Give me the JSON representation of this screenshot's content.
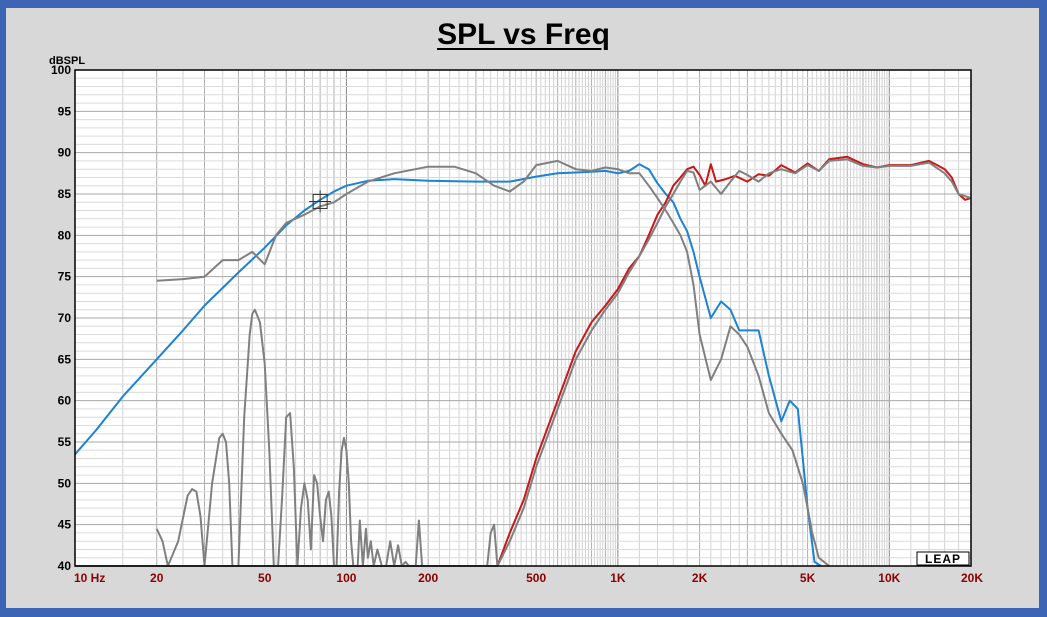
{
  "chart_data": {
    "type": "line",
    "title": "SPL vs Freq",
    "ylabel": "dBSPL",
    "xscale": "log",
    "xlim": [
      10,
      20000
    ],
    "ylim": [
      40,
      100
    ],
    "x_tick_values": [
      10,
      20,
      50,
      100,
      200,
      500,
      1000,
      2000,
      5000,
      10000,
      20000
    ],
    "x_tick_labels": [
      "10  Hz",
      "20",
      "50",
      "100",
      "200",
      "500",
      "1K",
      "2K",
      "5K",
      "10K",
      "20K"
    ],
    "y_ticks": [
      40,
      45,
      50,
      55,
      60,
      65,
      70,
      75,
      80,
      85,
      90,
      95,
      100
    ],
    "grid": true,
    "logo": "LEAP",
    "colors": {
      "blue": "#1c82d4",
      "red": "#c81818",
      "gray": "#808080",
      "frame": "#3c66b5",
      "panel": "#d8d8d8"
    },
    "series": [
      {
        "color": "#1c82d4",
        "x": [
          10,
          12,
          15,
          20,
          25,
          30,
          40,
          50,
          60,
          70,
          80,
          90,
          100,
          120,
          150,
          200,
          300,
          400,
          500,
          600,
          700,
          800,
          900,
          1000,
          1100,
          1200,
          1300,
          1400,
          1500,
          1600,
          1700,
          1800,
          1900,
          2000,
          2200,
          2400,
          2600,
          2800,
          3000,
          3300,
          3600,
          4000,
          4300,
          4600,
          4800,
          5000,
          5300,
          5600
        ],
        "y": [
          53.5,
          56.5,
          60.5,
          65,
          68.5,
          71.5,
          75.5,
          78.5,
          81.2,
          83,
          84.3,
          85.3,
          86,
          86.6,
          86.8,
          86.6,
          86.5,
          86.5,
          87.1,
          87.5,
          87.6,
          87.7,
          87.8,
          87.5,
          87.8,
          88.6,
          88,
          86.3,
          85,
          84,
          82,
          80.5,
          78,
          75,
          70,
          72,
          71,
          68.5,
          68.5,
          68.5,
          63,
          57.5,
          60,
          59,
          53,
          47,
          40.5,
          40
        ]
      },
      {
        "color": "#c81818",
        "x": [
          10,
          300,
          360,
          400,
          450,
          500,
          600,
          700,
          800,
          900,
          1000,
          1100,
          1200,
          1300,
          1400,
          1500,
          1600,
          1700,
          1800,
          1900,
          2000,
          2100,
          2200,
          2300,
          2500,
          2700,
          3000,
          3300,
          3600,
          4000,
          4500,
          5000,
          5500,
          6000,
          7000,
          8000,
          9000,
          10000,
          12000,
          14000,
          15000,
          16000,
          17000,
          18000,
          19000,
          20000
        ],
        "y": [
          40,
          40,
          40,
          44,
          48,
          53,
          60,
          66,
          69.5,
          71.5,
          73.5,
          76,
          77.5,
          80,
          82.5,
          84,
          86,
          87,
          88,
          88.3,
          87.3,
          86,
          88.6,
          86.5,
          86.8,
          87.2,
          86.5,
          87.4,
          87.2,
          88.5,
          87.6,
          88.7,
          87.8,
          89.2,
          89.5,
          88.6,
          88.2,
          88.5,
          88.5,
          89,
          88.5,
          88,
          87,
          85,
          84.3,
          84.5
        ]
      },
      {
        "color": "#808080",
        "x": [
          20,
          25,
          30,
          35,
          40,
          45,
          50,
          55,
          60,
          70,
          80,
          90,
          100,
          120,
          150,
          200,
          250,
          300,
          350,
          400,
          450,
          500,
          600,
          700,
          800,
          900,
          1000,
          1100,
          1200,
          1300,
          1400,
          1500,
          1600,
          1700,
          1800,
          1900,
          2000,
          2200,
          2400,
          2600,
          2800,
          3000,
          3300,
          3600,
          4000,
          4400,
          4800,
          5000,
          5200,
          5500,
          6000
        ],
        "y": [
          74.5,
          74.7,
          75,
          77,
          77,
          78,
          76.5,
          80,
          81.5,
          82.5,
          83.5,
          84,
          85,
          86.5,
          87.5,
          88.3,
          88.3,
          87.5,
          86,
          85.3,
          86.5,
          88.5,
          89,
          88,
          87.8,
          88.2,
          88,
          87.5,
          87.5,
          86,
          84.5,
          83,
          81.5,
          80,
          78,
          74,
          68,
          62.5,
          65,
          69,
          68,
          66.5,
          63,
          58.5,
          56,
          54,
          50,
          47,
          44,
          41,
          40
        ]
      },
      {
        "color": "#808080",
        "x": [
          10,
          360,
          400,
          450,
          500,
          600,
          700,
          800,
          900,
          1000,
          1100,
          1200,
          1300,
          1400,
          1500,
          1600,
          1700,
          1800,
          1900,
          2000,
          2200,
          2400,
          2600,
          2800,
          3000,
          3300,
          3600,
          4000,
          4500,
          5000,
          5500,
          6000,
          7000,
          8000,
          9000,
          10000,
          12000,
          14000,
          16000,
          17000,
          18000,
          20000
        ],
        "y": [
          40,
          40,
          43,
          47,
          52,
          59,
          65,
          68.5,
          71,
          73,
          75.5,
          77.5,
          79.5,
          81.5,
          83.5,
          85,
          86.5,
          87.8,
          87.6,
          85.5,
          86.5,
          85,
          86.5,
          87.8,
          87.3,
          86.5,
          87.5,
          88,
          87.5,
          88.5,
          87.8,
          89,
          89.2,
          88.4,
          88.2,
          88.4,
          88.4,
          88.8,
          87.5,
          86.5,
          85,
          84.5
        ]
      },
      {
        "color": "#808080",
        "x": [
          20,
          21,
          22,
          24,
          26,
          27,
          28,
          29,
          30,
          32,
          34,
          35,
          36,
          37,
          38,
          40,
          42,
          44,
          45,
          46,
          48,
          50,
          52,
          54,
          56,
          58,
          60,
          62,
          64,
          66,
          68,
          70,
          72,
          74,
          76,
          78,
          80,
          82,
          84,
          86,
          88,
          90,
          92,
          94,
          96,
          98,
          100,
          102,
          104,
          106,
          108,
          110,
          112,
          115,
          118,
          120,
          123,
          126,
          130,
          135,
          140,
          145,
          150,
          155,
          160,
          165,
          170,
          180,
          185,
          190,
          200,
          210,
          330,
          340,
          350,
          360
        ],
        "y": [
          44.5,
          43,
          40,
          43,
          48.5,
          49.3,
          49,
          46,
          40,
          50,
          55.5,
          56,
          55,
          50,
          40,
          40,
          58,
          68,
          70.5,
          71,
          69.5,
          64.5,
          54,
          40,
          40,
          48.5,
          58,
          58.5,
          52,
          40,
          47,
          50,
          48,
          42,
          51,
          50,
          46,
          43,
          48,
          49,
          46,
          40,
          40,
          49,
          54,
          55.5,
          54,
          50,
          43,
          40,
          40,
          40,
          45.5,
          40,
          44.5,
          41,
          43,
          40,
          42,
          40,
          40,
          43,
          40,
          42.5,
          40,
          40.5,
          40,
          40,
          45.5,
          40,
          40,
          40,
          40,
          44,
          45,
          40
        ]
      }
    ]
  }
}
